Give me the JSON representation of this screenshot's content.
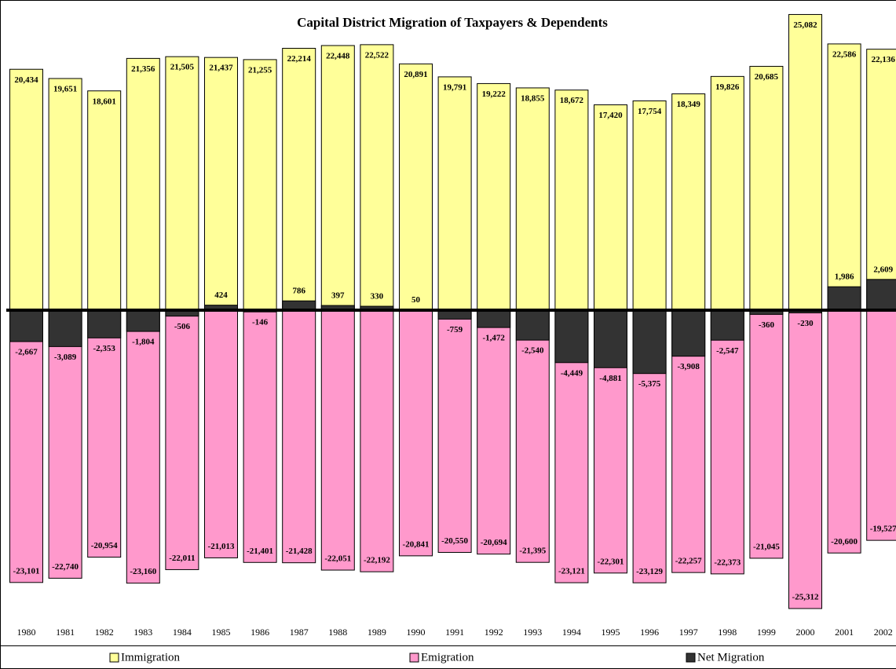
{
  "chart_data": {
    "type": "bar",
    "title": "Capital District Migration of Taxpayers & Dependents",
    "categories": [
      "1980",
      "1981",
      "1982",
      "1983",
      "1984",
      "1985",
      "1986",
      "1987",
      "1988",
      "1989",
      "1990",
      "1991",
      "1992",
      "1993",
      "1994",
      "1995",
      "1996",
      "1997",
      "1998",
      "1999",
      "2000",
      "2001",
      "2002"
    ],
    "series": [
      {
        "name": "Immigration",
        "color": "#ffff99",
        "values": [
          20434,
          19651,
          18601,
          21356,
          21505,
          21437,
          21255,
          22214,
          22448,
          22522,
          20891,
          19791,
          19222,
          18855,
          18672,
          17420,
          17754,
          18349,
          19826,
          20685,
          25082,
          22586,
          22136
        ],
        "value_labels": [
          "20,434",
          "19,651",
          "18,601",
          "21,356",
          "21,505",
          "21,437",
          "21,255",
          "22,214",
          "22,448",
          "22,522",
          "20,891",
          "19,791",
          "19,222",
          "18,855",
          "18,672",
          "17,420",
          "17,754",
          "18,349",
          "19,826",
          "20,685",
          "25,082",
          "22,586",
          "22,136"
        ]
      },
      {
        "name": "Emigration",
        "color": "#ff99cc",
        "values": [
          -23101,
          -22740,
          -20954,
          -23160,
          -22011,
          -21013,
          -21401,
          -21428,
          -22051,
          -22192,
          -20841,
          -20550,
          -20694,
          -21395,
          -23121,
          -22301,
          -23129,
          -22257,
          -22373,
          -21045,
          -25312,
          -20600,
          -19527
        ],
        "value_labels": [
          "-23,101",
          "-22,740",
          "-20,954",
          "-23,160",
          "-22,011",
          "-21,013",
          "-21,401",
          "-21,428",
          "-22,051",
          "-22,192",
          "-20,841",
          "-20,550",
          "-20,694",
          "-21,395",
          "-23,121",
          "-22,301",
          "-23,129",
          "-22,257",
          "-22,373",
          "-21,045",
          "-25,312",
          "-20,600",
          "-19,527"
        ]
      },
      {
        "name": "Net Migration",
        "color": "#333333",
        "values": [
          -2667,
          -3089,
          -2353,
          -1804,
          -506,
          424,
          -146,
          786,
          397,
          330,
          50,
          -759,
          -1472,
          -2540,
          -4449,
          -4881,
          -5375,
          -3908,
          -2547,
          -360,
          -230,
          1986,
          2609
        ],
        "value_labels": [
          "-2,667",
          "-3,089",
          "-2,353",
          "-1,804",
          "-506",
          "424",
          "-146",
          "786",
          "397",
          "330",
          "50",
          "-759",
          "-1,472",
          "-2,540",
          "-4,449",
          "-4,881",
          "-5,375",
          "-3,908",
          "-2,547",
          "-360",
          "-230",
          "1,986",
          "2,609"
        ]
      }
    ]
  }
}
